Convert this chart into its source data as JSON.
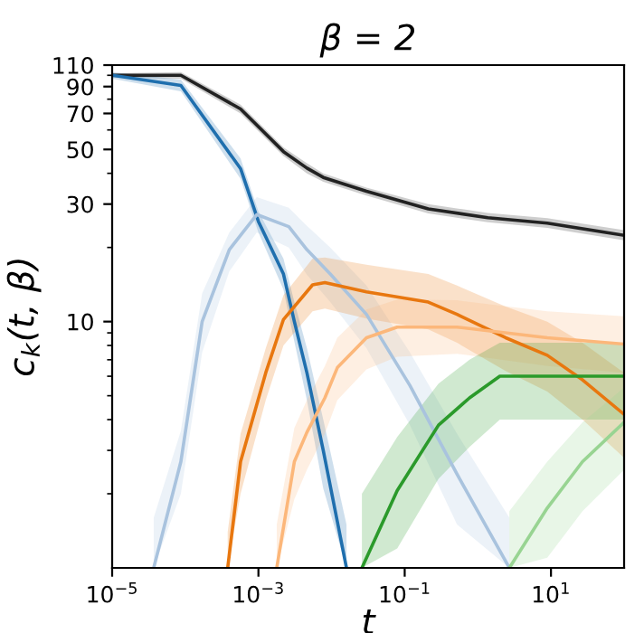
{
  "chart_data": {
    "type": "line",
    "title": "β = 2",
    "xlabel": "t",
    "ylabel": "c$_{k}$(t, β)",
    "log": "xy",
    "grid": false,
    "xlim": [
      1e-05,
      100
    ],
    "ylim": [
      1,
      110
    ],
    "xticks": [
      {
        "value": 1e-05,
        "label": "10$^{−5}$"
      },
      {
        "value": 0.001,
        "label": "10$^{−3}$"
      },
      {
        "value": 0.1,
        "label": "10$^{−1}$"
      },
      {
        "value": 10,
        "label": "10$^{1}$"
      }
    ],
    "yticks": [
      10,
      30,
      50,
      70,
      90,
      110,
      {
        "value": 2,
        "label": null
      },
      {
        "value": 3,
        "label": null
      },
      {
        "value": 4,
        "label": null
      },
      {
        "value": 5,
        "label": null
      },
      {
        "value": 6,
        "label": null
      },
      {
        "value": 7,
        "label": null
      },
      {
        "value": 8,
        "label": null
      },
      {
        "value": 9,
        "label": null
      },
      {
        "value": 20,
        "label": null
      },
      {
        "value": 40,
        "label": null
      },
      {
        "value": 60,
        "label": null
      },
      {
        "value": 80,
        "label": null
      },
      {
        "value": 100,
        "label": null
      }
    ],
    "series": [
      {
        "color": "#222222",
        "x": [
          1e-05,
          8.7e-05,
          0.00057,
          0.0022,
          0.0046,
          0.0077,
          0.03,
          0.21,
          1.37,
          8.9,
          100
        ],
        "values": [
          100,
          100,
          73,
          49,
          42,
          38.5,
          33.8,
          28.7,
          26.4,
          25.1,
          22.4
        ],
        "lower": [
          98,
          97,
          70,
          47,
          40,
          37,
          32.5,
          27.5,
          25.3,
          24,
          21.4
        ],
        "upper": [
          102,
          103,
          76,
          51,
          44,
          40,
          35,
          30,
          27.6,
          26.3,
          23.5
        ]
      },
      {
        "color": "#1f6fae",
        "x": [
          1e-05,
          8.7e-05,
          0.00057,
          0.001,
          0.0022,
          0.0031,
          0.0046,
          0.0077,
          0.016
        ],
        "values": [
          100,
          91,
          41.8,
          25.5,
          15.6,
          10,
          6.2,
          3.0,
          1.0
        ],
        "lower": [
          97,
          86,
          38,
          23,
          13.5,
          8.3,
          4.8,
          2.1,
          1.0
        ],
        "upper": [
          103,
          96,
          46,
          28,
          18,
          12,
          7.8,
          4.0,
          1.5
        ]
      },
      {
        "color": "#a9c3de",
        "x": [
          3.7e-05,
          8.7e-05,
          0.00017,
          0.0004,
          0.00095,
          0.0026,
          0.0046,
          0.0096,
          0.03,
          0.118,
          0.52,
          2.7
        ],
        "values": [
          1.0,
          2.7,
          10,
          19.6,
          27.2,
          24.3,
          19.6,
          15.6,
          10.7,
          5.5,
          2.4,
          1.0
        ],
        "lower": [
          1.0,
          2.0,
          7.5,
          16,
          23,
          20,
          15.5,
          12,
          7.8,
          3.8,
          1.5,
          1.0
        ],
        "upper": [
          1.6,
          3.6,
          13,
          23,
          32,
          29,
          24.5,
          20,
          14,
          7.5,
          3.5,
          1.6
        ]
      },
      {
        "color": "#e8770f",
        "x": [
          0.00038,
          0.00057,
          0.00126,
          0.0022,
          0.0055,
          0.0081,
          0.03,
          0.21,
          0.52,
          2.4,
          8.9,
          27,
          100
        ],
        "values": [
          1.0,
          2.7,
          6.2,
          10.2,
          14.1,
          14.4,
          13.2,
          12,
          10.7,
          8.6,
          7.3,
          5.8,
          4.2
        ],
        "lower": [
          1.0,
          2.0,
          4.8,
          8.0,
          11,
          11.3,
          10.3,
          9.3,
          8.2,
          6.3,
          5.2,
          4.0,
          2.8
        ],
        "upper": [
          1.4,
          3.5,
          7.8,
          12.8,
          18,
          18.2,
          17,
          15.6,
          14,
          11.5,
          10,
          8.2,
          6.2
        ]
      },
      {
        "color": "#fcb77a",
        "x": [
          0.00178,
          0.0031,
          0.0046,
          0.0081,
          0.012,
          0.03,
          0.079,
          0.52,
          8.9,
          100
        ],
        "values": [
          1.0,
          2.7,
          3.55,
          4.9,
          6.5,
          8.6,
          9.5,
          9.5,
          8.6,
          8.1
        ],
        "lower": [
          1.0,
          1.9,
          2.5,
          3.5,
          4.8,
          6.4,
          7.2,
          7.4,
          6.6,
          6.2
        ],
        "upper": [
          1.5,
          3.7,
          4.8,
          6.6,
          8.6,
          11.2,
          12.3,
          12.2,
          11,
          10.5
        ]
      },
      {
        "color": "#2b9a2b",
        "x": [
          0.026,
          0.079,
          0.29,
          0.77,
          2.0,
          100
        ],
        "values": [
          1.0,
          2.06,
          3.8,
          4.9,
          6.0,
          6.0
        ],
        "lower": [
          1.0,
          1.2,
          2.3,
          3.1,
          4.0,
          4.0
        ],
        "upper": [
          2.0,
          3.4,
          5.6,
          7.0,
          8.2,
          8.2
        ]
      },
      {
        "color": "#98d492",
        "x": [
          2.7,
          8.9,
          27,
          100
        ],
        "values": [
          1.0,
          1.75,
          2.7,
          3.9
        ],
        "lower": [
          1.0,
          1.1,
          1.7,
          2.5
        ],
        "upper": [
          1.7,
          2.7,
          3.9,
          5.4
        ]
      }
    ]
  }
}
